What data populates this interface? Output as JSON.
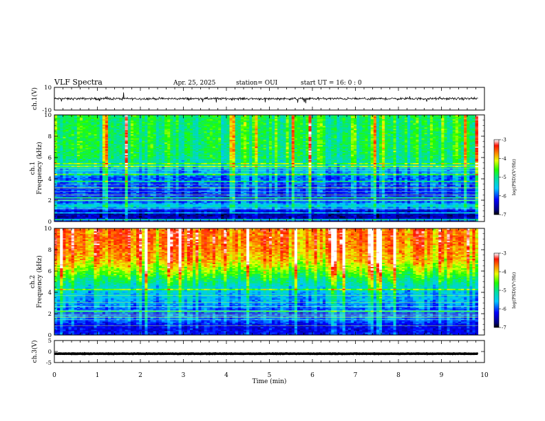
{
  "header": {
    "title": "VLF Spectra",
    "date": "Apr. 25, 2025",
    "station": "station= OUI",
    "start": "start  UT  =   16: 0  : 0"
  },
  "chart_data": [
    {
      "type": "line",
      "panel": "ch1-waveform",
      "ylabel": "ch.1(V)",
      "ylim": [
        -10,
        10
      ],
      "yticks": [
        "10",
        "-10"
      ],
      "description_values": {
        "baseline_V": 0,
        "noise_amplitude_V": 1.5
      }
    },
    {
      "type": "heatmap",
      "panel": "ch1-spectrogram",
      "ylabel": "ch.1\nFrequency (kHz)",
      "ylabel_line1": "ch.1",
      "ylabel_line2": "Frequency (kHz)",
      "ylim": [
        0,
        10
      ],
      "yticks": [
        "0",
        "2",
        "4",
        "6",
        "8",
        "10"
      ],
      "colorbar": {
        "label": "log(PSD)(V²/Hz)",
        "range": [
          -7,
          -3
        ],
        "ticks": [
          "-3",
          "-4",
          "-5",
          "-6",
          "-7"
        ]
      },
      "profile": {
        "freq_kHz": [
          0,
          0.5,
          1,
          1.5,
          2,
          2.5,
          3,
          3.5,
          4,
          4.5,
          5,
          5.5,
          6,
          7,
          8,
          9,
          10
        ],
        "log_psd": [
          -6.2,
          -6.6,
          -6.4,
          -5.2,
          -6.3,
          -6.1,
          -6.0,
          -5.9,
          -5.9,
          -5.7,
          -5.5,
          -5.1,
          -4.9,
          -4.8,
          -4.8,
          -4.8,
          -4.8
        ]
      }
    },
    {
      "type": "heatmap",
      "panel": "ch2-spectrogram",
      "ylabel": "ch.2\nFrequency (kHz)",
      "ylabel_line1": "ch.2",
      "ylabel_line2": "Frequency (kHz)",
      "ylim": [
        0,
        10
      ],
      "yticks": [
        "0",
        "2",
        "4",
        "6",
        "8",
        "10"
      ],
      "colorbar": {
        "label": "log(PSD)(V²/Hz)",
        "range": [
          -7,
          -3
        ],
        "ticks": [
          "-3",
          "-4",
          "-5",
          "-6",
          "-7"
        ]
      },
      "profile": {
        "freq_kHz": [
          0,
          0.5,
          1,
          1.5,
          2,
          2.5,
          3,
          3.5,
          4,
          4.5,
          5,
          5.5,
          6,
          7,
          8,
          9,
          10
        ],
        "log_psd": [
          -6.1,
          -6.3,
          -6.2,
          -5.8,
          -6.0,
          -5.9,
          -5.7,
          -5.6,
          -5.5,
          -5.3,
          -5.0,
          -4.7,
          -4.4,
          -3.9,
          -3.7,
          -3.6,
          -3.6
        ]
      }
    },
    {
      "type": "line",
      "panel": "ch3-waveform",
      "ylabel": "ch.3(V)",
      "ylim": [
        -5,
        5
      ],
      "yticks": [
        "5",
        "0",
        "-5"
      ],
      "description_values": {
        "baseline_V": -1,
        "noise_amplitude_V": 0.15
      }
    }
  ],
  "xaxis": {
    "xlabel": "Time (min)",
    "xlim": [
      0,
      10
    ],
    "data_end_min": 9.85,
    "ticks": [
      "0",
      "1",
      "2",
      "3",
      "4",
      "5",
      "6",
      "7",
      "8",
      "9",
      "10"
    ]
  }
}
